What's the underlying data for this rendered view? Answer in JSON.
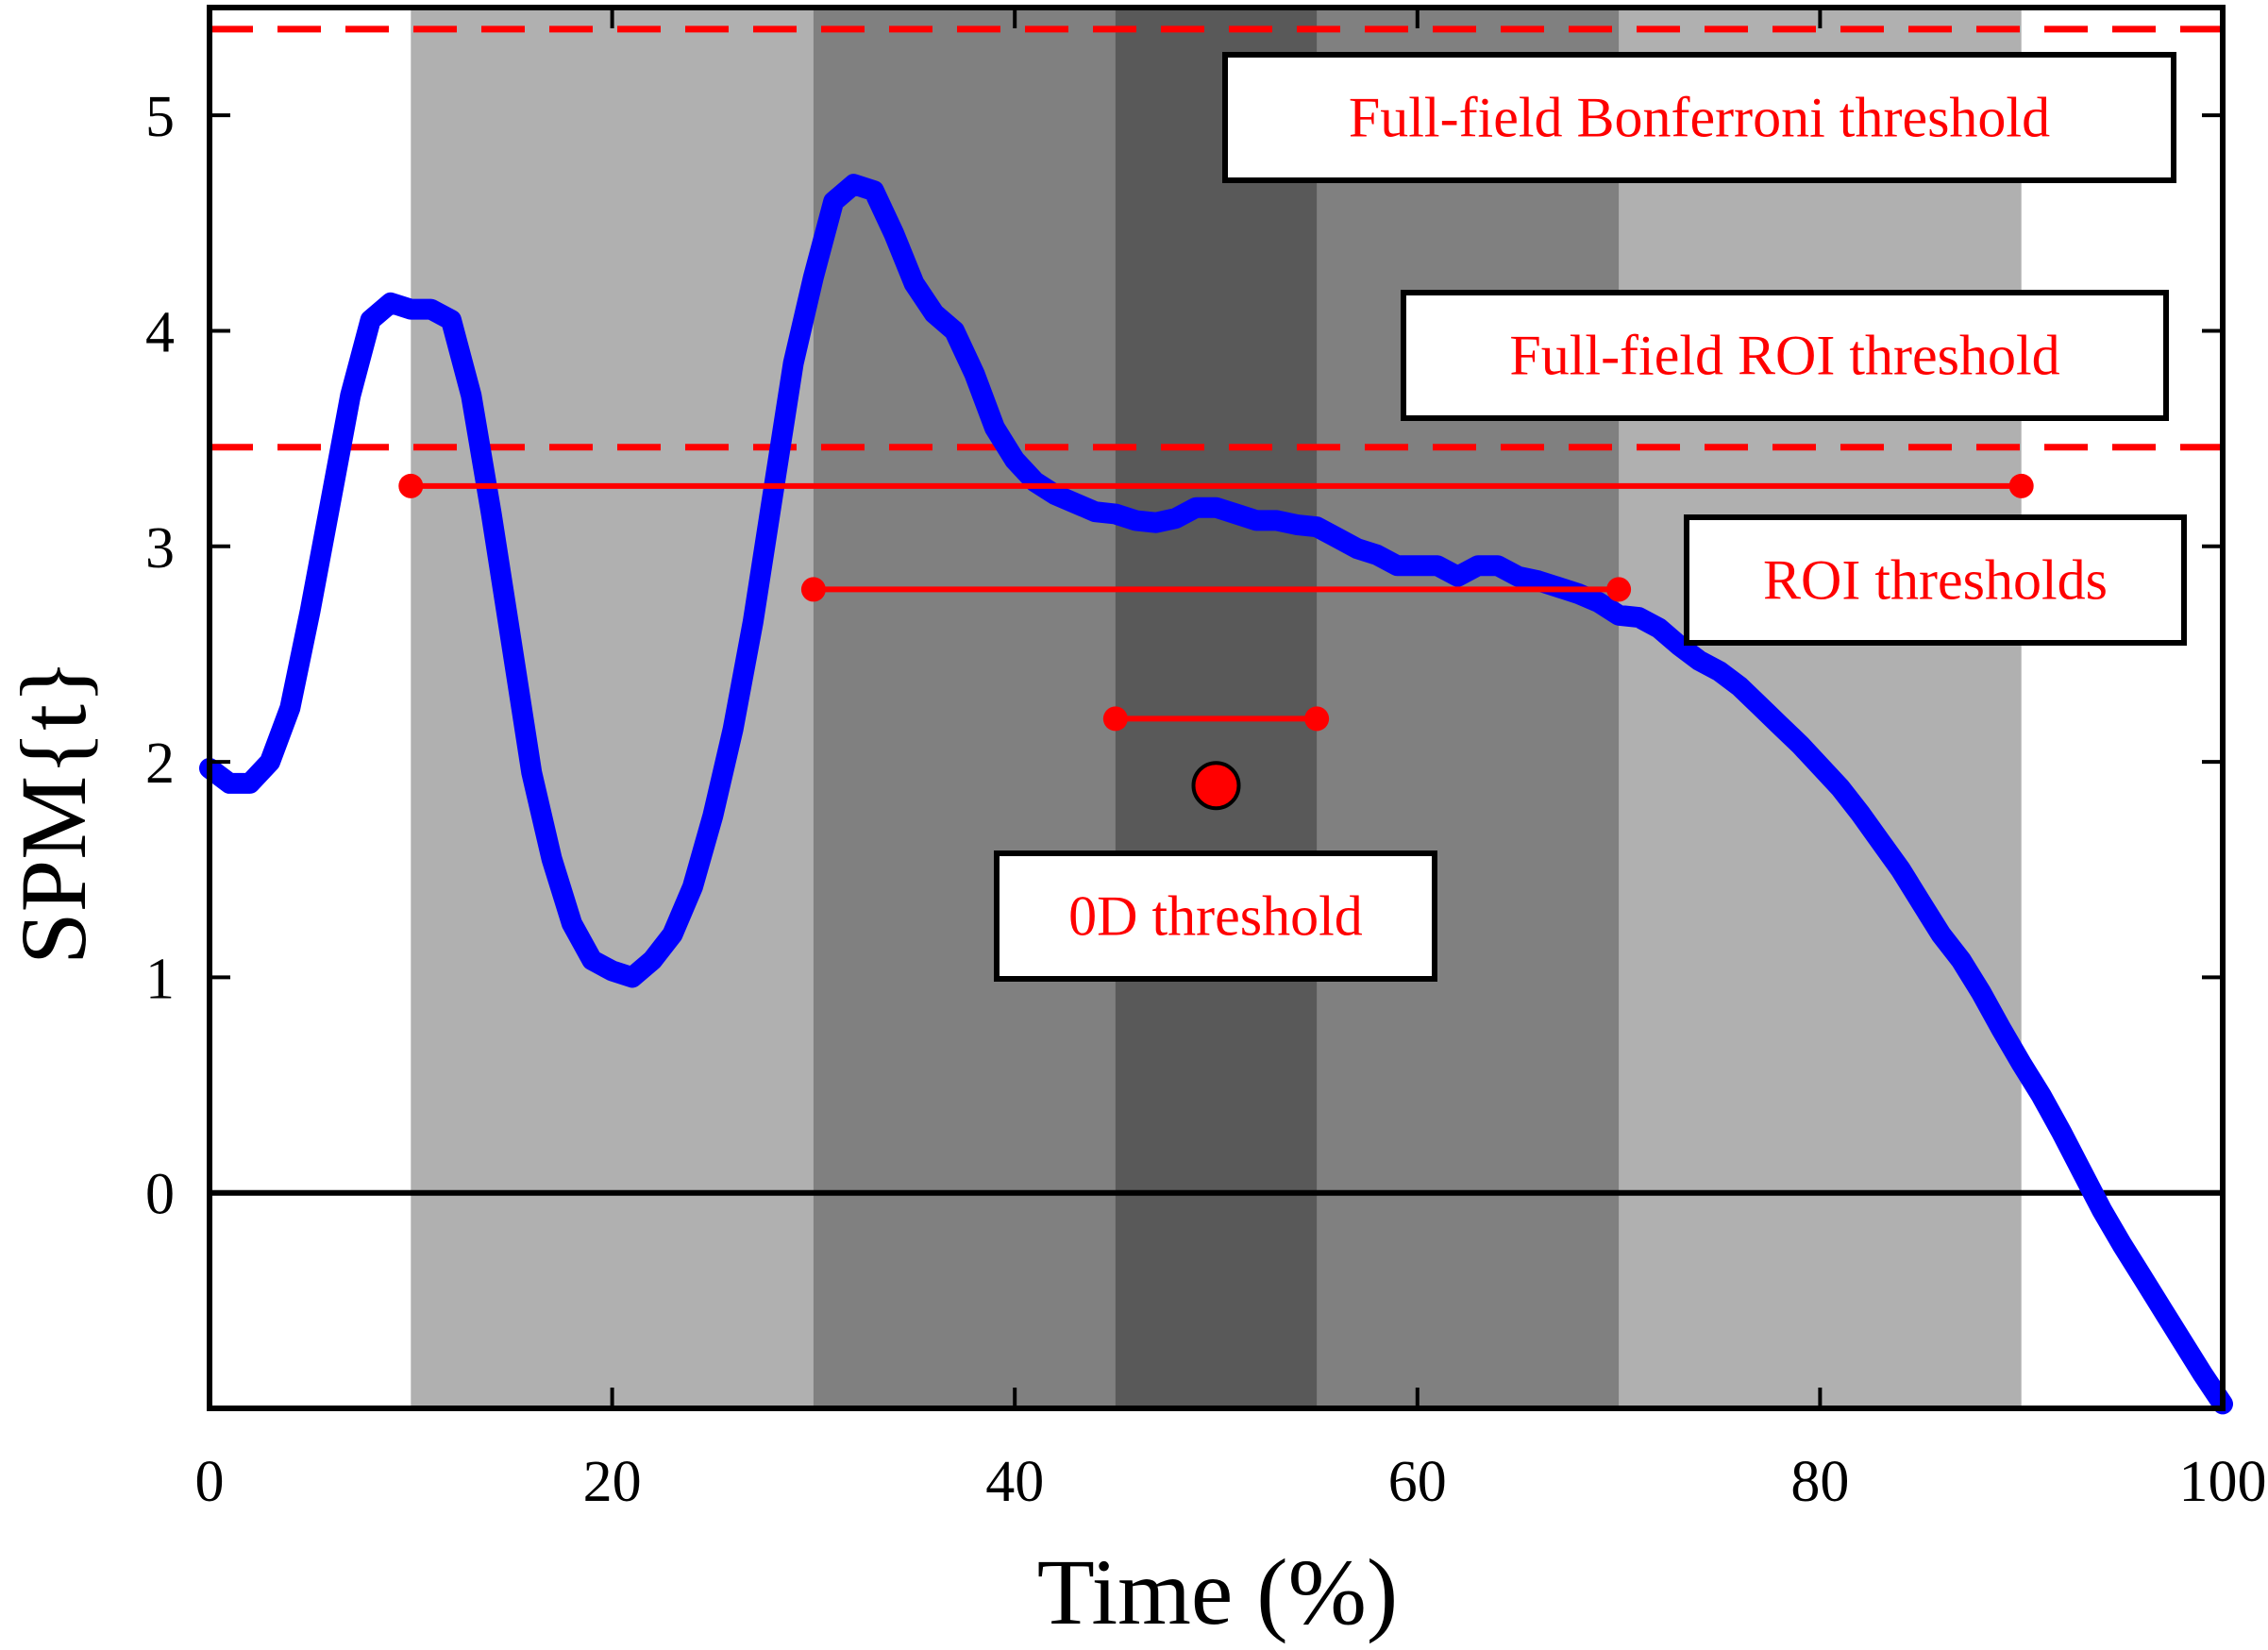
{
  "chart_data": {
    "type": "line",
    "title": "",
    "xlabel": "Time  (%)",
    "ylabel": "SPM{t}",
    "xlim": [
      0,
      100
    ],
    "ylim": [
      -1,
      5.5
    ],
    "xticks": [
      0,
      20,
      40,
      60,
      80,
      100
    ],
    "yticks": [
      0,
      1,
      2,
      3,
      4,
      5
    ],
    "grid": false,
    "colors": {
      "curve": "#0000ff",
      "threshold": "#ff0000",
      "zero_line": "#000000",
      "region_light": "#b0b0b0",
      "region_mid": "#808080",
      "region_dark": "#595959"
    },
    "shaded_regions": [
      {
        "x": [
          10,
          90
        ],
        "shade": "light"
      },
      {
        "x": [
          30,
          70
        ],
        "shade": "mid"
      },
      {
        "x": [
          45,
          55
        ],
        "shade": "dark"
      }
    ],
    "series": [
      {
        "x": [
          0,
          1,
          2,
          3,
          4,
          5,
          6,
          7,
          8,
          9,
          10,
          11,
          12,
          13,
          14,
          15,
          16,
          17,
          18,
          19,
          20,
          21,
          22,
          23,
          24,
          25,
          26,
          27,
          28,
          29,
          30,
          31,
          32,
          33,
          34,
          35,
          36,
          37,
          38,
          39,
          40,
          41,
          42,
          43,
          44,
          45,
          46,
          47,
          48,
          49,
          50,
          51,
          52,
          53,
          54,
          55,
          56,
          57,
          58,
          59,
          60,
          61,
          62,
          63,
          64,
          65,
          66,
          67,
          68,
          69,
          70,
          71,
          72,
          73,
          74,
          75,
          76,
          77,
          78,
          79,
          80,
          81,
          82,
          83,
          84,
          85,
          86,
          87,
          88,
          89,
          90,
          91,
          92,
          93,
          94,
          95,
          96,
          97,
          98,
          99,
          100
        ],
        "values": [
          1.97,
          1.9,
          1.9,
          2.0,
          2.25,
          2.7,
          3.2,
          3.7,
          4.05,
          4.13,
          4.1,
          4.1,
          4.05,
          3.7,
          3.15,
          2.55,
          1.95,
          1.55,
          1.25,
          1.08,
          1.03,
          1.0,
          1.08,
          1.2,
          1.42,
          1.75,
          2.15,
          2.65,
          3.25,
          3.85,
          4.25,
          4.6,
          4.68,
          4.65,
          4.45,
          4.22,
          4.08,
          4.0,
          3.8,
          3.55,
          3.4,
          3.3,
          3.24,
          3.2,
          3.16,
          3.15,
          3.12,
          3.11,
          3.13,
          3.18,
          3.18,
          3.15,
          3.12,
          3.12,
          3.1,
          3.09,
          3.04,
          2.99,
          2.96,
          2.91,
          2.91,
          2.91,
          2.86,
          2.91,
          2.91,
          2.86,
          2.84,
          2.81,
          2.78,
          2.74,
          2.68,
          2.67,
          2.62,
          2.54,
          2.47,
          2.42,
          2.35,
          2.26,
          2.17,
          2.08,
          1.98,
          1.88,
          1.76,
          1.63,
          1.5,
          1.35,
          1.2,
          1.08,
          0.93,
          0.76,
          0.6,
          0.45,
          0.28,
          0.1,
          -0.08,
          -0.24,
          -0.39,
          -0.54,
          -0.69,
          -0.84,
          -0.98
        ]
      }
    ],
    "thresholds": {
      "full_field_bonferroni": 5.4,
      "full_field_roi": 3.46,
      "roi": [
        {
          "x": [
            10,
            90
          ],
          "y": 3.28
        },
        {
          "x": [
            30,
            70
          ],
          "y": 2.8
        },
        {
          "x": [
            45,
            55
          ],
          "y": 2.2
        }
      ],
      "zero_d": {
        "x": 50,
        "y": 1.89
      }
    },
    "annotations": [
      {
        "key": "bonferroni",
        "text": "Full-field Bonferroni threshold"
      },
      {
        "key": "roi_full",
        "text": "Full-field ROI threshold"
      },
      {
        "key": "roi",
        "text": "ROI thresholds"
      },
      {
        "key": "zero_d",
        "text": "0D threshold"
      }
    ]
  }
}
